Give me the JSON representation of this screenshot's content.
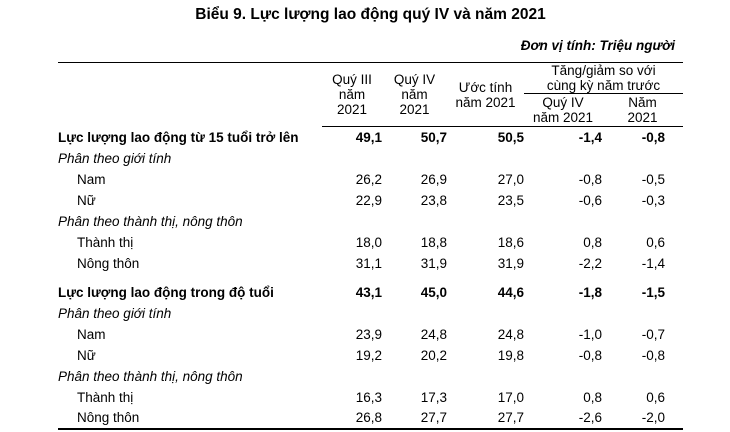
{
  "title": "Biểu 9. Lực lượng lao động quý IV và năm 2021",
  "unit_note": "Đơn vị tính: Triệu người",
  "colors": {
    "text": "#000000",
    "background": "#ffffff",
    "rule": "#000000"
  },
  "table": {
    "columns": [
      {
        "id": "q3-2021",
        "lines": [
          "Quý III",
          "năm",
          "2021"
        ]
      },
      {
        "id": "q4-2021",
        "lines": [
          "Quý IV",
          "năm",
          "2021"
        ]
      },
      {
        "id": "estimate-2021",
        "lines": [
          "Ước tính",
          "năm 2021"
        ]
      }
    ],
    "change_group": {
      "lines": [
        "Tăng/giảm so với",
        "cùng kỳ năm trước"
      ],
      "sub_columns": [
        {
          "id": "change-q4-2021",
          "lines": [
            "Quý IV",
            "năm 2021"
          ]
        },
        {
          "id": "change-year-2021",
          "lines": [
            "Năm",
            "2021"
          ]
        }
      ]
    },
    "rows": [
      {
        "label": "Lực lượng lao động từ 15 tuổi trở lên",
        "kind": "section",
        "gap": false,
        "values": [
          "49,1",
          "50,7",
          "50,5",
          "-1,4",
          "-0,8"
        ]
      },
      {
        "label": "Phân theo giới tính",
        "kind": "group",
        "gap": false,
        "values": []
      },
      {
        "label": "Nam",
        "kind": "item",
        "gap": false,
        "values": [
          "26,2",
          "26,9",
          "27,0",
          "-0,8",
          "-0,5"
        ]
      },
      {
        "label": "Nữ",
        "kind": "item",
        "gap": false,
        "values": [
          "22,9",
          "23,8",
          "23,5",
          "-0,6",
          "-0,3"
        ]
      },
      {
        "label": "Phân theo thành thị, nông thôn",
        "kind": "group",
        "gap": false,
        "values": []
      },
      {
        "label": "Thành thị",
        "kind": "item",
        "gap": false,
        "values": [
          "18,0",
          "18,8",
          "18,6",
          "0,8",
          "0,6"
        ]
      },
      {
        "label": "Nông thôn",
        "kind": "item",
        "gap": false,
        "values": [
          "31,1",
          "31,9",
          "31,9",
          "-2,2",
          "-1,4"
        ]
      },
      {
        "label": "Lực lượng lao động trong độ tuổi",
        "kind": "section",
        "gap": true,
        "values": [
          "43,1",
          "45,0",
          "44,6",
          "-1,8",
          "-1,5"
        ]
      },
      {
        "label": "Phân theo giới tính",
        "kind": "group",
        "gap": false,
        "values": []
      },
      {
        "label": "Nam",
        "kind": "item",
        "gap": false,
        "values": [
          "23,9",
          "24,8",
          "24,8",
          "-1,0",
          "-0,7"
        ]
      },
      {
        "label": "Nữ",
        "kind": "item",
        "gap": false,
        "values": [
          "19,2",
          "20,2",
          "19,8",
          "-0,8",
          "-0,8"
        ]
      },
      {
        "label": "Phân theo thành thị, nông thôn",
        "kind": "group",
        "gap": false,
        "values": []
      },
      {
        "label": "Thành thị",
        "kind": "item",
        "gap": false,
        "values": [
          "16,3",
          "17,3",
          "17,0",
          "0,8",
          "0,6"
        ]
      },
      {
        "label": "Nông thôn",
        "kind": "item",
        "gap": false,
        "values": [
          "26,8",
          "27,7",
          "27,7",
          "-2,6",
          "-2,0"
        ]
      }
    ]
  }
}
